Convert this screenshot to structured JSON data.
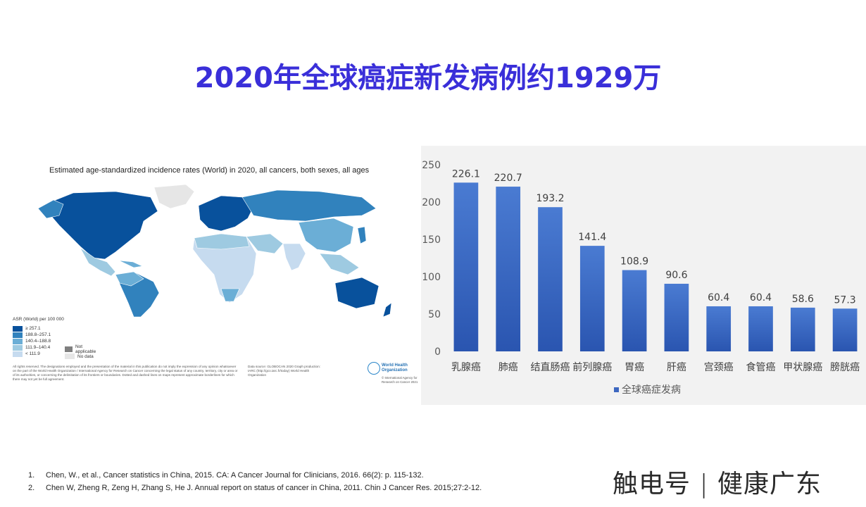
{
  "slide": {
    "title": "2020年全球癌症新发病例约1929万"
  },
  "map": {
    "title": "Estimated age-standardized incidence rates (World) in 2020, all cancers, both sexes, all ages",
    "legend_title": "ASR (World) per 100 000",
    "legend": [
      {
        "label": "≥ 257.1",
        "color": "#08519c"
      },
      {
        "label": "188.8–257.1",
        "color": "#3182bd"
      },
      {
        "label": "140.4–188.8",
        "color": "#6baed6"
      },
      {
        "label": "111.9–140.4",
        "color": "#9ecae1"
      },
      {
        "label": "< 111.9",
        "color": "#c6dbef"
      }
    ],
    "legend_extra": [
      {
        "label": "Not applicable",
        "color": "#7f7f7f"
      },
      {
        "label": "No data",
        "color": "#e6e6e6"
      }
    ],
    "disclaimer": "All rights reserved. The designations employed and the presentation of the material in this publication do not imply the expression of any opinion whatsoever on the part of the World Health Organization / International Agency for Research on Cancer concerning the legal status of any country, territory, city or area or of its authorities, or concerning the delimitation of its frontiers or boundaries. Dotted and dashed lines on maps represent approximate borderlines for which there may not yet be full agreement.",
    "source": "Data source: GLOBOCAN 2020 Graph production: IARC (http://gco.iarc.fr/today) World Health Organization",
    "who_name": "World Health Organization",
    "who_copyright": "© International Agency for Research on Cancer 2021"
  },
  "chart_data": {
    "type": "bar",
    "categories": [
      "乳腺癌",
      "肺癌",
      "结直肠癌",
      "前列腺癌",
      "胃癌",
      "肝癌",
      "宫颈癌",
      "食管癌",
      "甲状腺癌",
      "膀胱癌"
    ],
    "series": [
      {
        "name": "全球癌症发病",
        "values": [
          226.1,
          220.7,
          193.2,
          141.4,
          108.9,
          90.6,
          60.4,
          60.4,
          58.6,
          57.3
        ]
      }
    ],
    "ylim": [
      0,
      250
    ],
    "yticks": [
      0,
      50,
      100,
      150,
      200,
      250
    ],
    "grid": false,
    "legend_position": "bottom",
    "colors": {
      "bar_top": "#4a7bd2",
      "bar_bottom": "#2a55b0"
    }
  },
  "footer": {
    "references": [
      {
        "num": "1.",
        "text": "Chen, W., et al., Cancer statistics in China, 2015. CA: A Cancer Journal for Clinicians, 2016. 66(2): p. 115-132."
      },
      {
        "num": "2.",
        "text": "Chen W, Zheng R, Zeng H, Zhang S, He J. Annual report on status of cancer in China, 2011. Chin J Cancer Res. 2015;27:2-12."
      }
    ],
    "watermark": "触电号 | 健康广东"
  }
}
